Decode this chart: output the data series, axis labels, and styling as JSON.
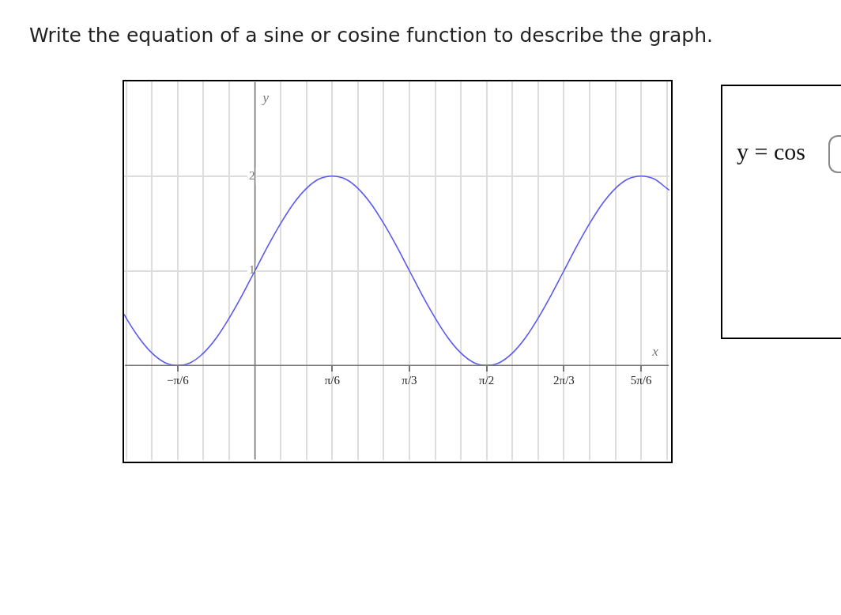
{
  "chart_data": {
    "type": "line",
    "title": "Write the equation of a sine or cosine function to describe the graph.",
    "xlabel": "x",
    "ylabel": "y",
    "annotations": [
      "y = cos"
    ],
    "x": [
      -0.887,
      -0.8727,
      -0.7854,
      -0.6981,
      -0.6109,
      -0.5236,
      -0.4363,
      -0.3491,
      -0.2618,
      -0.1745,
      -0.0873,
      0,
      0.0873,
      0.1745,
      0.2618,
      0.3491,
      0.4363,
      0.5236,
      0.6109,
      0.6981,
      0.7854,
      0.8727,
      0.9599,
      1.0472,
      1.1345,
      1.2217,
      1.309,
      1.3963,
      1.4835,
      1.5708,
      1.6581,
      1.7453,
      1.8326,
      1.9199,
      2.0071,
      2.0944,
      2.1817,
      2.2689,
      2.3562,
      2.4435,
      2.5307,
      2.618,
      2.7053,
      2.7925,
      2.81
    ],
    "series": [
      {
        "color": "#5a5af0",
        "values": [
          0.54,
          0.5,
          0.29,
          0.13,
          0.03,
          0,
          0.03,
          0.13,
          0.29,
          0.5,
          0.74,
          1,
          1.26,
          1.5,
          1.71,
          1.87,
          1.97,
          2,
          1.97,
          1.87,
          1.71,
          1.5,
          1.26,
          1,
          0.74,
          0.5,
          0.29,
          0.13,
          0.03,
          0,
          0.03,
          0.13,
          0.29,
          0.5,
          0.74,
          1,
          1.26,
          1.5,
          1.71,
          1.87,
          1.97,
          2,
          1.97,
          1.87,
          1.85
        ]
      }
    ],
    "xlim": [
      -0.887,
      2.81
    ],
    "ylim": [
      -1,
      3
    ],
    "xticks": [
      {
        "value": -0.8727,
        "label": null
      },
      {
        "value": -0.6981,
        "label": null
      },
      {
        "value": -0.5236,
        "label": "−π/6"
      },
      {
        "value": -0.3491,
        "label": null
      },
      {
        "value": -0.1745,
        "label": null
      },
      {
        "value": 0,
        "label": null
      },
      {
        "value": 0.1745,
        "label": null
      },
      {
        "value": 0.3491,
        "label": null
      },
      {
        "value": 0.5236,
        "label": "π/6"
      },
      {
        "value": 0.6981,
        "label": null
      },
      {
        "value": 0.8727,
        "label": null
      },
      {
        "value": 1.0472,
        "label": "π/3"
      },
      {
        "value": 1.2217,
        "label": null
      },
      {
        "value": 1.3963,
        "label": null
      },
      {
        "value": 1.5708,
        "label": "π/2"
      },
      {
        "value": 1.7453,
        "label": null
      },
      {
        "value": 1.9199,
        "label": null
      },
      {
        "value": 2.0944,
        "label": "2π/3"
      },
      {
        "value": 2.2689,
        "label": null
      },
      {
        "value": 2.4435,
        "label": null
      },
      {
        "value": 2.618,
        "label": "5π/6"
      },
      {
        "value": 2.7925,
        "label": null
      }
    ],
    "yticks": [
      1,
      2
    ],
    "grid": true,
    "legend": false,
    "marker": "none",
    "line_style": "solid"
  }
}
